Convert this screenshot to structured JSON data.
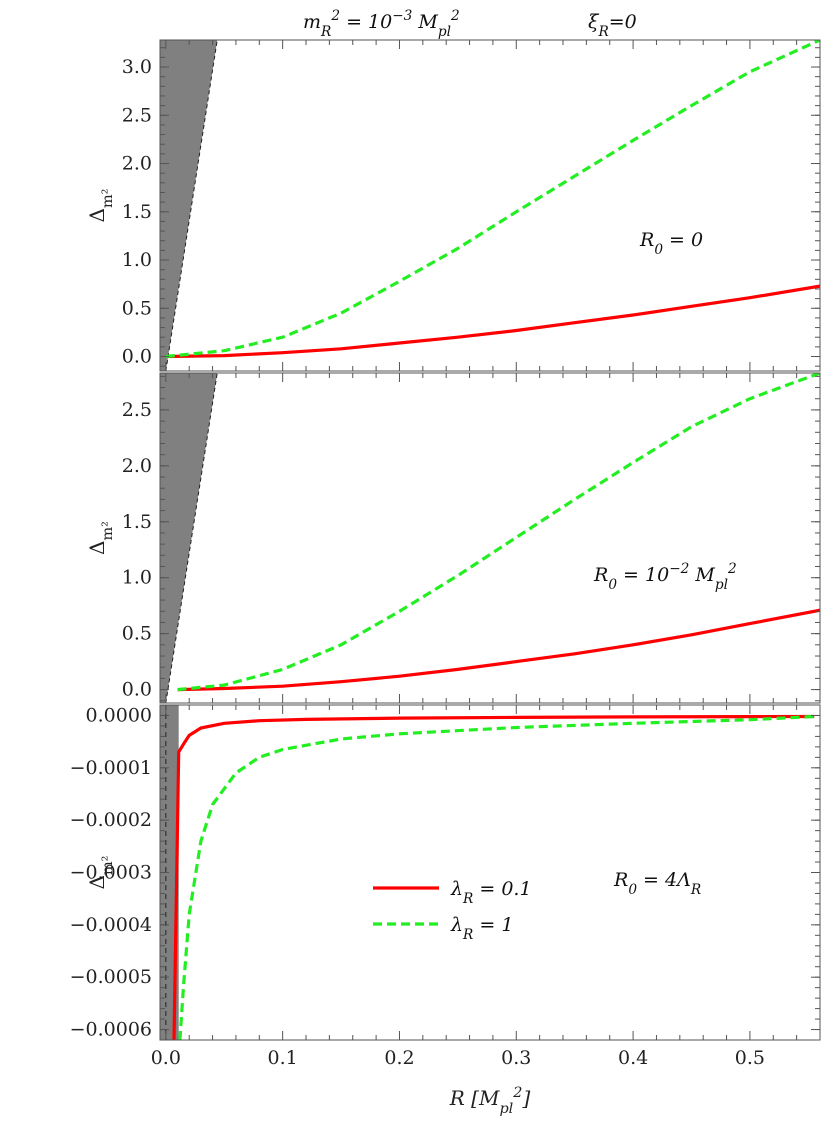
{
  "figure": {
    "header_left": "m_R^2 = 10^-3 M_pl^2",
    "header_right": "ξ_R=0",
    "xlabel": "R [M_pl^2]"
  },
  "chart_data": [
    {
      "type": "line",
      "panel": "top",
      "ylabel": "Δ_m²",
      "annotation": "R_0 = 0",
      "xlim": [
        -0.005,
        0.56
      ],
      "ylim": [
        -0.15,
        3.28
      ],
      "xticks": [
        0.0,
        0.1,
        0.2,
        0.3,
        0.4,
        0.5
      ],
      "yticks": [
        0.0,
        0.5,
        1.0,
        1.5,
        2.0,
        2.5,
        3.0
      ],
      "ytick_labels": [
        "0.0",
        "0.5",
        "1.0",
        "1.5",
        "2.0",
        "2.5",
        "3.0"
      ],
      "shaded_region": {
        "upper_x": [
          0.0,
          0.044
        ],
        "upper_y": [
          -0.15,
          3.28
        ],
        "fill": "#808080"
      },
      "series": [
        {
          "name": "λ_R = 0.1",
          "color": "#ff0000",
          "dashed": false,
          "x": [
            0.0,
            0.05,
            0.1,
            0.15,
            0.2,
            0.25,
            0.3,
            0.35,
            0.4,
            0.45,
            0.5,
            0.56
          ],
          "y": [
            0.0,
            0.01,
            0.04,
            0.08,
            0.14,
            0.2,
            0.27,
            0.35,
            0.43,
            0.52,
            0.61,
            0.73
          ]
        },
        {
          "name": "λ_R = 1",
          "color": "#22ee22",
          "dashed": true,
          "x": [
            0.0,
            0.05,
            0.1,
            0.15,
            0.2,
            0.25,
            0.3,
            0.35,
            0.4,
            0.45,
            0.5,
            0.56
          ],
          "y": [
            0.0,
            0.06,
            0.2,
            0.45,
            0.78,
            1.12,
            1.5,
            1.87,
            2.24,
            2.6,
            2.95,
            3.28
          ]
        }
      ]
    },
    {
      "type": "line",
      "panel": "middle",
      "ylabel": "Δ_m²",
      "annotation": "R_0 = 10^-2 M_pl^2",
      "xlim": [
        -0.005,
        0.56
      ],
      "ylim": [
        -0.12,
        2.83
      ],
      "xticks": [
        0.0,
        0.1,
        0.2,
        0.3,
        0.4,
        0.5
      ],
      "yticks": [
        0.0,
        0.5,
        1.0,
        1.5,
        2.0,
        2.5
      ],
      "ytick_labels": [
        "0.0",
        "0.5",
        "1.0",
        "1.5",
        "2.0",
        "2.5"
      ],
      "shaded_region": {
        "upper_x": [
          0.0,
          0.044
        ],
        "upper_y": [
          -0.12,
          2.83
        ],
        "fill": "#808080"
      },
      "series": [
        {
          "name": "λ_R = 0.1",
          "color": "#ff0000",
          "dashed": false,
          "x": [
            0.01,
            0.05,
            0.1,
            0.15,
            0.2,
            0.25,
            0.3,
            0.35,
            0.4,
            0.45,
            0.5,
            0.56
          ],
          "y": [
            0.0,
            0.01,
            0.03,
            0.07,
            0.12,
            0.18,
            0.25,
            0.32,
            0.4,
            0.49,
            0.59,
            0.71
          ]
        },
        {
          "name": "λ_R = 1",
          "color": "#22ee22",
          "dashed": true,
          "x": [
            0.01,
            0.05,
            0.1,
            0.15,
            0.2,
            0.25,
            0.3,
            0.35,
            0.4,
            0.45,
            0.5,
            0.56
          ],
          "y": [
            0.0,
            0.04,
            0.18,
            0.4,
            0.7,
            1.02,
            1.36,
            1.7,
            2.03,
            2.35,
            2.6,
            2.83
          ]
        }
      ]
    },
    {
      "type": "line",
      "panel": "bottom",
      "ylabel": "Δ_m²",
      "annotation": "R_0 = 4Λ_R",
      "xlim": [
        -0.005,
        0.56
      ],
      "ylim": [
        -0.00062,
        2e-05
      ],
      "xticks": [
        0.0,
        0.1,
        0.2,
        0.3,
        0.4,
        0.5
      ],
      "xtick_labels": [
        "0.0",
        "0.1",
        "0.2",
        "0.3",
        "0.4",
        "0.5"
      ],
      "yticks": [
        0.0,
        -0.0001,
        -0.0002,
        -0.0003,
        -0.0004,
        -0.0005,
        -0.0006
      ],
      "ytick_labels": [
        "0.0000",
        "−0.0001",
        "−0.0002",
        "−0.0003",
        "−0.0004",
        "−0.0005",
        "−0.0006"
      ],
      "shaded_region": {
        "x_range": [
          -0.005,
          0.011
        ],
        "fill": "#808080"
      },
      "legend": {
        "position": "center",
        "entries": [
          "λ_R = 0.1",
          "λ_R = 1"
        ]
      },
      "series": [
        {
          "name": "λ_R = 0.1",
          "color": "#ff0000",
          "dashed": false,
          "x": [
            0.007,
            0.011,
            0.015,
            0.02,
            0.03,
            0.05,
            0.08,
            0.12,
            0.2,
            0.3,
            0.4,
            0.5,
            0.555
          ],
          "y": [
            -0.00062,
            -7e-05,
            -5.5e-05,
            -3.8e-05,
            -2.4e-05,
            -1.5e-05,
            -1e-05,
            -7.5e-06,
            -5e-06,
            -3.6e-06,
            -2.8e-06,
            -2.2e-06,
            -2e-06
          ]
        },
        {
          "name": "λ_R = 1",
          "color": "#22ee22",
          "dashed": true,
          "x": [
            0.012,
            0.015,
            0.02,
            0.03,
            0.04,
            0.06,
            0.08,
            0.1,
            0.15,
            0.2,
            0.3,
            0.4,
            0.5,
            0.555
          ],
          "y": [
            -0.00062,
            -0.00052,
            -0.00038,
            -0.00024,
            -0.00017,
            -0.00011,
            -8e-05,
            -6.5e-05,
            -4.5e-05,
            -3.5e-05,
            -2.3e-05,
            -1.5e-05,
            -8e-06,
            -2e-06
          ]
        }
      ]
    }
  ]
}
